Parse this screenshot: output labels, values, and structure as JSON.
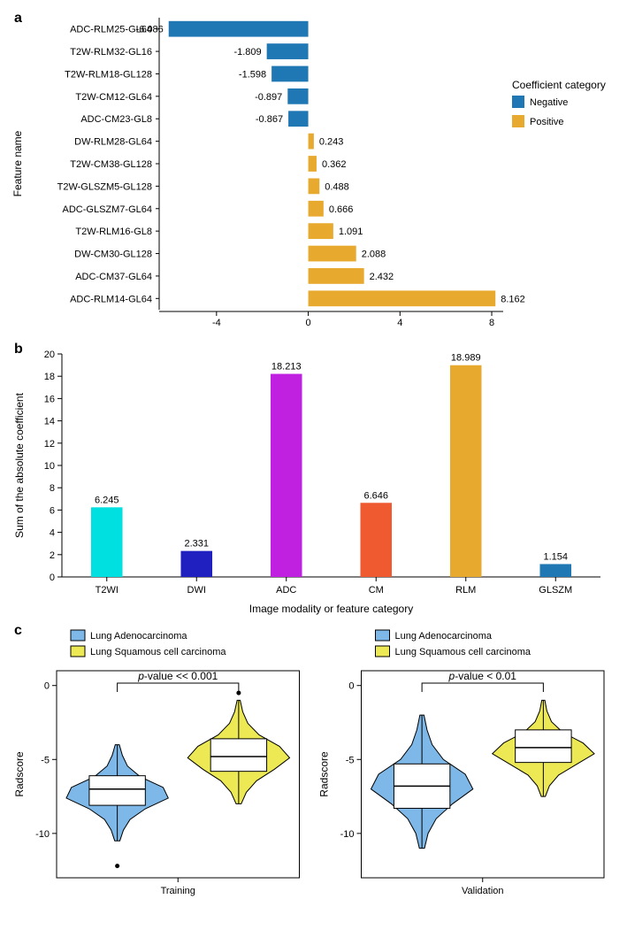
{
  "panel_labels": {
    "a": "a",
    "b": "b",
    "c": "c"
  },
  "panel_a": {
    "type": "horizontal_bar",
    "y_axis_title": "Feature name",
    "x_ticks": [
      -4,
      0,
      4,
      8
    ],
    "xlim": [
      -6.5,
      8.5
    ],
    "legend_title": "Coefficient category",
    "legend": [
      {
        "label": "Negative",
        "color": "#1f77b4"
      },
      {
        "label": "Positive",
        "color": "#e8a92f"
      }
    ],
    "bars": [
      {
        "name": "ADC-RLM25-GL64",
        "value": -6.086,
        "color": "#1f77b4"
      },
      {
        "name": "T2W-RLM32-GL16",
        "value": -1.809,
        "color": "#1f77b4"
      },
      {
        "name": "T2W-RLM18-GL128",
        "value": -1.598,
        "color": "#1f77b4"
      },
      {
        "name": "T2W-CM12-GL64",
        "value": -0.897,
        "color": "#1f77b4"
      },
      {
        "name": "ADC-CM23-GL8",
        "value": -0.867,
        "color": "#1f77b4"
      },
      {
        "name": "DW-RLM28-GL64",
        "value": 0.243,
        "color": "#e8a92f"
      },
      {
        "name": "T2W-CM38-GL128",
        "value": 0.362,
        "color": "#e8a92f"
      },
      {
        "name": "T2W-GLSZM5-GL128",
        "value": 0.488,
        "color": "#e8a92f"
      },
      {
        "name": "ADC-GLSZM7-GL64",
        "value": 0.666,
        "color": "#e8a92f"
      },
      {
        "name": "T2W-RLM16-GL8",
        "value": 1.091,
        "color": "#e8a92f"
      },
      {
        "name": "DW-CM30-GL128",
        "value": 2.088,
        "color": "#e8a92f"
      },
      {
        "name": "ADC-CM37-GL64",
        "value": 2.432,
        "color": "#e8a92f"
      },
      {
        "name": "ADC-RLM14-GL64",
        "value": 8.162,
        "color": "#e8a92f"
      }
    ],
    "bar_height_ratio": 0.7,
    "label_fontsize": 11,
    "title_fontsize": 12
  },
  "panel_b": {
    "type": "bar",
    "x_axis_title": "Image modality or feature category",
    "y_axis_title": "Sum of the absolute coefficient",
    "y_ticks": [
      0,
      2,
      4,
      6,
      8,
      10,
      12,
      14,
      16,
      18,
      20
    ],
    "ylim": [
      0,
      20
    ],
    "bars": [
      {
        "name": "T2WI",
        "value": 6.245,
        "color": "#00e0e0"
      },
      {
        "name": "DWI",
        "value": 2.331,
        "color": "#2020c0"
      },
      {
        "name": "ADC",
        "value": 18.213,
        "color": "#c020e0"
      },
      {
        "name": "CM",
        "value": 6.646,
        "color": "#f05a30"
      },
      {
        "name": "RLM",
        "value": 18.989,
        "color": "#e8a92f"
      },
      {
        "name": "GLSZM",
        "value": 1.154,
        "color": "#1f77b4"
      }
    ],
    "bar_width_ratio": 0.35,
    "label_fontsize": 11
  },
  "panel_c": {
    "type": "violin_box",
    "y_axis_title": "Radscore",
    "legend": [
      {
        "label_prefix": "Lung",
        "label_rest": " Adenocarcinoma",
        "fill": "#7db8e8",
        "stroke": "#000"
      },
      {
        "label_prefix": "Lung",
        "label_rest": " Squamous cell carcinoma",
        "fill": "#ece955",
        "stroke": "#000"
      }
    ],
    "panels": [
      {
        "title": "Training",
        "p_text": "p-value << 0.001",
        "y_ticks": [
          0,
          -5,
          -10
        ],
        "ylim": [
          -13,
          1
        ],
        "groups": [
          {
            "fill": "#7db8e8",
            "median": -7.0,
            "q1": -8.1,
            "q3": -6.1,
            "low": -10.5,
            "high": -4.0,
            "widths": [
              0.05,
              0.12,
              0.25,
              0.55,
              1.0,
              0.9,
              0.45,
              0.2,
              0.1,
              0.04
            ],
            "outliers": [
              -12.2
            ]
          },
          {
            "fill": "#ece955",
            "median": -4.8,
            "q1": -5.8,
            "q3": -3.6,
            "low": -8.0,
            "high": -1.0,
            "widths": [
              0.05,
              0.15,
              0.35,
              0.7,
              1.0,
              0.8,
              0.4,
              0.18,
              0.08,
              0.03
            ],
            "outliers": [
              -0.5
            ]
          }
        ]
      },
      {
        "title": "Validation",
        "p_text": "p-value < 0.01",
        "y_ticks": [
          0,
          -5,
          -10
        ],
        "ylim": [
          -13,
          1
        ],
        "groups": [
          {
            "fill": "#7db8e8",
            "median": -6.8,
            "q1": -8.3,
            "q3": -5.3,
            "low": -11.0,
            "high": -2.0,
            "widths": [
              0.05,
              0.12,
              0.28,
              0.6,
              1.0,
              0.85,
              0.42,
              0.2,
              0.1,
              0.04
            ],
            "outliers": []
          },
          {
            "fill": "#ece955",
            "median": -4.2,
            "q1": -5.2,
            "q3": -3.0,
            "low": -7.5,
            "high": -1.0,
            "widths": [
              0.04,
              0.12,
              0.3,
              0.65,
              1.0,
              0.78,
              0.38,
              0.16,
              0.07,
              0.03
            ],
            "outliers": []
          }
        ]
      }
    ]
  }
}
